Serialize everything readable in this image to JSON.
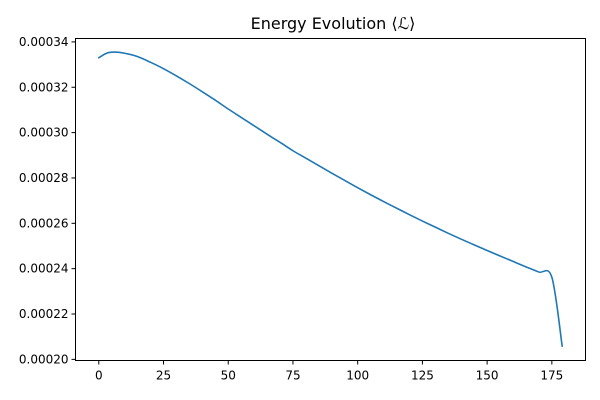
{
  "chart_data": {
    "type": "line",
    "title": "Energy Evolution ⟨ℒ⟩",
    "xlabel": "",
    "ylabel": "",
    "xlim": [
      -9,
      188
    ],
    "ylim": [
      0.0001995,
      0.0003415
    ],
    "grid": false,
    "legend": "none",
    "x_ticks": [
      0,
      25,
      50,
      75,
      100,
      125,
      150,
      175
    ],
    "x_tick_labels": [
      "0",
      "25",
      "50",
      "75",
      "100",
      "125",
      "150",
      "175"
    ],
    "y_ticks": [
      0.0002,
      0.00022,
      0.00024,
      0.00026,
      0.00028,
      0.0003,
      0.00032,
      0.00034
    ],
    "y_tick_labels": [
      "0.00020",
      "0.00022",
      "0.00024",
      "0.00026",
      "0.00028",
      "0.00030",
      "0.00032",
      "0.00034"
    ],
    "series": [
      {
        "color": "#1f77b4",
        "x": [
          0,
          3,
          6,
          10,
          15,
          20,
          25,
          30,
          35,
          40,
          45,
          50,
          55,
          60,
          65,
          70,
          75,
          80,
          85,
          90,
          95,
          100,
          105,
          110,
          115,
          120,
          125,
          130,
          135,
          140,
          145,
          150,
          155,
          160,
          165,
          170,
          175,
          179
        ],
        "values": [
          0.000333,
          0.000335,
          0.0003355,
          0.000335,
          0.0003335,
          0.000331,
          0.0003282,
          0.000325,
          0.0003216,
          0.000318,
          0.0003143,
          0.0003104,
          0.0003067,
          0.000303,
          0.0002993,
          0.0002957,
          0.000292,
          0.0002887,
          0.0002854,
          0.0002821,
          0.0002789,
          0.0002757,
          0.0002726,
          0.0002696,
          0.0002667,
          0.0002638,
          0.000261,
          0.0002583,
          0.0002556,
          0.000253,
          0.0002505,
          0.000248,
          0.0002456,
          0.0002432,
          0.0002408,
          0.0002385,
          0.0002362,
          0.0002058
        ]
      }
    ]
  }
}
